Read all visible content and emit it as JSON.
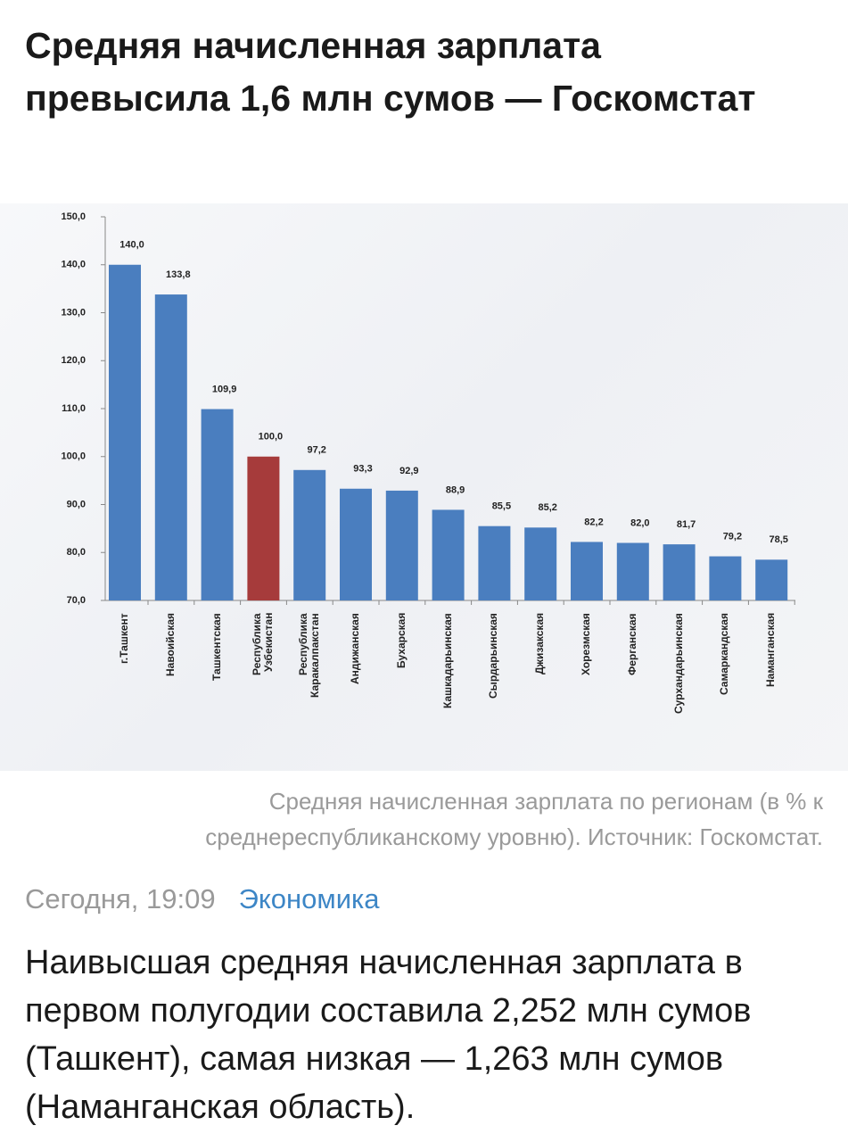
{
  "header": {
    "title": "Средняя начисленная зарплата превысила 1,6 млн сумов — Госкомстат"
  },
  "chart_data": {
    "type": "bar",
    "categories": [
      "г.Ташкент",
      "Навоийская",
      "Ташкентская",
      "Республика Узбекистан",
      "Республика Каракалпакстан",
      "Андижанская",
      "Бухарская",
      "Кашкадарьинская",
      "Сырдарьинская",
      "Джизакская",
      "Хорезмская",
      "Ферганская",
      "Сурхандарьинская",
      "Самаркандская",
      "Наманганская"
    ],
    "values": [
      140.0,
      133.8,
      109.9,
      100.0,
      97.2,
      93.3,
      92.9,
      88.9,
      85.5,
      85.2,
      82.2,
      82.0,
      81.7,
      79.2,
      78.5
    ],
    "value_labels": [
      "140,0",
      "133,8",
      "109,9",
      "100,0",
      "97,2",
      "93,3",
      "92,9",
      "88,9",
      "85,5",
      "85,2",
      "82,2",
      "82,0",
      "81,7",
      "79,2",
      "78,5"
    ],
    "colors": [
      "#4a7ebf",
      "#4a7ebf",
      "#4a7ebf",
      "#a63b3b",
      "#4a7ebf",
      "#4a7ebf",
      "#4a7ebf",
      "#4a7ebf",
      "#4a7ebf",
      "#4a7ebf",
      "#4a7ebf",
      "#4a7ebf",
      "#4a7ebf",
      "#4a7ebf",
      "#4a7ebf"
    ],
    "ylim": [
      70,
      150
    ],
    "yticks": [
      {
        "value": 70,
        "label": "70,0"
      },
      {
        "value": 80,
        "label": "80,0"
      },
      {
        "value": 90,
        "label": "90,0"
      },
      {
        "value": 100,
        "label": "100,0"
      },
      {
        "value": 110,
        "label": "110,0"
      },
      {
        "value": 120,
        "label": "120,0"
      },
      {
        "value": 130,
        "label": "130,0"
      },
      {
        "value": 140,
        "label": "140,0"
      },
      {
        "value": 150,
        "label": "150,0"
      }
    ],
    "grid": false
  },
  "caption": "Средняя начисленная зарплата по регионам (в % к среднереспубликанскому уровню). Источник: Госкомстат.",
  "meta": {
    "date": "Сегодня, 19:09",
    "category": "Экономика"
  },
  "body": "Наивысшая средняя начисленная зарплата в первом полугодии составила 2,252 млн сумов (Ташкент), самая низкая — 1,263 млн сумов (Наманганская область)."
}
